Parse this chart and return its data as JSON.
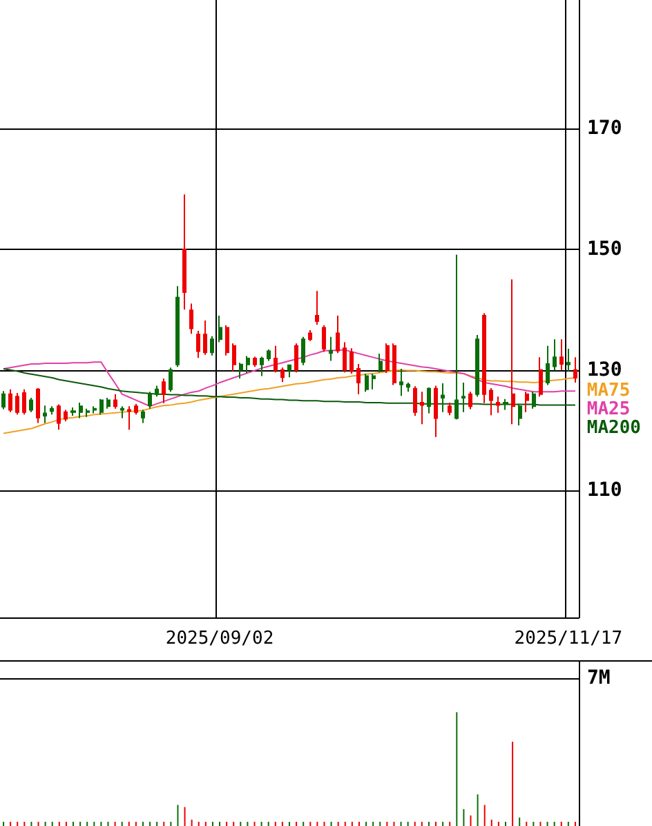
{
  "chart_data": [
    {
      "type": "candlestick",
      "categories": [
        null,
        null,
        null,
        null,
        null,
        null,
        null,
        null,
        null,
        null,
        null,
        null,
        null,
        null,
        null,
        null,
        null,
        null,
        null,
        null,
        null,
        null,
        null,
        null,
        null,
        null,
        null,
        null,
        null,
        null,
        null,
        "2025/09/02",
        null,
        null,
        null,
        null,
        null,
        null,
        null,
        null,
        null,
        null,
        null,
        null,
        null,
        null,
        null,
        null,
        null,
        null,
        null,
        null,
        null,
        null,
        null,
        null,
        null,
        null,
        null,
        null,
        null,
        null,
        null,
        null,
        null,
        null,
        null,
        null,
        null,
        null,
        null,
        null,
        null,
        null,
        null,
        null,
        null,
        null,
        null,
        null,
        null,
        "2025/11/17",
        null
      ],
      "ohlc": [
        [
          123.9,
          126.5,
          123.5,
          126.0
        ],
        [
          126.0,
          126.8,
          123.0,
          123.4
        ],
        [
          125.6,
          126.2,
          122.6,
          123.0
        ],
        [
          126.2,
          126.8,
          122.6,
          123.0
        ],
        [
          123.4,
          125.4,
          123.0,
          125.0
        ],
        [
          126.8,
          127.0,
          121.2,
          122.1
        ],
        [
          122.4,
          124.1,
          121.2,
          122.8
        ],
        [
          123.2,
          124.0,
          122.6,
          123.6
        ],
        [
          124.0,
          124.3,
          120.1,
          121.2
        ],
        [
          123.0,
          123.4,
          121.5,
          121.9
        ],
        [
          123.0,
          123.8,
          122.4,
          123.2
        ],
        [
          123.0,
          124.6,
          122.0,
          124.0
        ],
        [
          123.0,
          123.6,
          122.2,
          123.2
        ],
        [
          123.4,
          124.0,
          122.8,
          123.6
        ],
        [
          123.0,
          125.2,
          122.6,
          125.0
        ],
        [
          124.0,
          125.4,
          123.6,
          125.0
        ],
        [
          125.0,
          126.0,
          123.6,
          124.0
        ],
        [
          123.4,
          124.0,
          122.0,
          123.6
        ],
        [
          123.4,
          124.0,
          120.1,
          123.2
        ],
        [
          124.0,
          124.4,
          122.6,
          123.0
        ],
        [
          122.1,
          123.4,
          121.2,
          123.0
        ],
        [
          124.1,
          126.4,
          123.6,
          126.0
        ],
        [
          126.0,
          127.4,
          125.6,
          126.8
        ],
        [
          128.0,
          128.6,
          124.5,
          126.0
        ],
        [
          126.8,
          130.4,
          126.4,
          130.0
        ],
        [
          130.9,
          143.9,
          130.5,
          142.0
        ],
        [
          150.0,
          159.1,
          140.0,
          142.9
        ],
        [
          139.9,
          141.0,
          136.0,
          136.9
        ],
        [
          135.9,
          136.5,
          132.0,
          133.1
        ],
        [
          135.9,
          138.2,
          132.5,
          132.9
        ],
        [
          132.9,
          135.6,
          132.4,
          135.1
        ],
        [
          135.1,
          139.0,
          134.6,
          137.0
        ],
        [
          137.0,
          137.4,
          132.4,
          132.9
        ],
        [
          134.0,
          134.4,
          129.8,
          130.9
        ],
        [
          130.0,
          131.2,
          128.6,
          130.9
        ],
        [
          130.9,
          132.3,
          129.5,
          131.9
        ],
        [
          131.9,
          132.2,
          130.5,
          130.9
        ],
        [
          130.9,
          132.2,
          129.0,
          131.9
        ],
        [
          131.9,
          133.4,
          131.5,
          133.1
        ],
        [
          131.9,
          134.0,
          129.6,
          130.0
        ],
        [
          130.0,
          130.4,
          128.0,
          128.8
        ],
        [
          130.0,
          130.9,
          128.8,
          130.8
        ],
        [
          134.0,
          134.4,
          129.6,
          130.0
        ],
        [
          131.3,
          135.5,
          130.8,
          135.1
        ],
        [
          136.1,
          136.6,
          134.8,
          135.1
        ],
        [
          139.0,
          143.1,
          137.5,
          138.1
        ],
        [
          137.0,
          137.4,
          133.0,
          133.5
        ],
        [
          132.8,
          135.5,
          131.5,
          133.2
        ],
        [
          136.1,
          139.0,
          132.8,
          133.2
        ],
        [
          133.6,
          134.6,
          129.6,
          130.0
        ],
        [
          132.9,
          133.6,
          129.4,
          129.8
        ],
        [
          130.2,
          131.0,
          126.0,
          127.9
        ],
        [
          126.8,
          129.4,
          126.4,
          129.0
        ],
        [
          128.6,
          129.4,
          126.8,
          129.0
        ],
        [
          130.0,
          132.7,
          129.6,
          131.4
        ],
        [
          134.0,
          134.4,
          129.5,
          130.0
        ],
        [
          134.0,
          134.4,
          127.5,
          127.9
        ],
        [
          127.6,
          130.2,
          125.7,
          128.0
        ],
        [
          127.2,
          127.9,
          126.4,
          127.6
        ],
        [
          126.9,
          127.3,
          122.4,
          123.0
        ],
        [
          124.6,
          126.4,
          121.0,
          124.2
        ],
        [
          124.0,
          127.1,
          122.8,
          126.9
        ],
        [
          126.9,
          127.4,
          118.9,
          122.0
        ],
        [
          125.4,
          127.8,
          123.0,
          125.8
        ],
        [
          124.0,
          124.6,
          122.5,
          123.0
        ],
        [
          122.0,
          149.1,
          121.8,
          125.0
        ],
        [
          125.4,
          127.9,
          123.0,
          125.6
        ],
        [
          126.0,
          126.4,
          123.5,
          124.0
        ],
        [
          126.0,
          135.8,
          125.6,
          135.1
        ],
        [
          139.0,
          139.4,
          124.5,
          126.0
        ],
        [
          126.6,
          127.0,
          122.5,
          125.0
        ],
        [
          124.6,
          125.6,
          122.9,
          124.2
        ],
        [
          124.4,
          125.2,
          123.4,
          124.6
        ],
        [
          126.0,
          145.0,
          121.0,
          124.0
        ],
        [
          122.0,
          124.4,
          120.8,
          124.0
        ],
        [
          126.0,
          126.4,
          123.0,
          125.0
        ],
        [
          124.0,
          126.4,
          123.6,
          126.0
        ],
        [
          130.0,
          132.1,
          125.6,
          126.0
        ],
        [
          127.9,
          134.0,
          127.5,
          131.0
        ],
        [
          130.6,
          135.1,
          129.9,
          132.1
        ],
        [
          132.1,
          135.1,
          130.0,
          131.0
        ],
        [
          130.9,
          133.5,
          129.8,
          131.2
        ],
        [
          130.0,
          132.1,
          127.9,
          128.7
        ]
      ],
      "colors": [
        "#0a6e0a",
        "#ee0000",
        "#ee0000",
        "#ee0000",
        "#0a6e0a",
        "#ee0000",
        "#0a6e0a",
        "#0a6e0a",
        "#ee0000",
        "#ee0000",
        "#0a6e0a",
        "#0a6e0a",
        "#0a6e0a",
        "#0a6e0a",
        "#0a6e0a",
        "#0a6e0a",
        "#ee0000",
        "#0a6e0a",
        "#ee0000",
        "#ee0000",
        "#0a6e0a",
        "#0a6e0a",
        "#0a6e0a",
        "#ee0000",
        "#0a6e0a",
        "#0a6e0a",
        "#ee0000",
        "#ee0000",
        "#ee0000",
        "#ee0000",
        "#0a6e0a",
        "#0a6e0a",
        "#ee0000",
        "#ee0000",
        "#0a6e0a",
        "#0a6e0a",
        "#ee0000",
        "#0a6e0a",
        "#0a6e0a",
        "#ee0000",
        "#ee0000",
        "#0a6e0a",
        "#ee0000",
        "#0a6e0a",
        "#ee0000",
        "#ee0000",
        "#ee0000",
        "#0a6e0a",
        "#ee0000",
        "#ee0000",
        "#ee0000",
        "#ee0000",
        "#0a6e0a",
        "#0a6e0a",
        "#0a6e0a",
        "#ee0000",
        "#ee0000",
        "#0a6e0a",
        "#0a6e0a",
        "#ee0000",
        "#ee0000",
        "#0a6e0a",
        "#ee0000",
        "#0a6e0a",
        "#ee0000",
        "#0a6e0a",
        "#0a6e0a",
        "#ee0000",
        "#0a6e0a",
        "#ee0000",
        "#ee0000",
        "#ee0000",
        "#0a6e0a",
        "#ee0000",
        "#0a6e0a",
        "#ee0000",
        "#0a6e0a",
        "#ee0000",
        "#0a6e0a",
        "#0a6e0a",
        "#ee0000",
        "#0a6e0a",
        "#ee0000"
      ],
      "series": [
        {
          "type": "line",
          "name": "MA75",
          "color": "#f0a020",
          "values": [
            119.5,
            119.7,
            119.9,
            120.1,
            120.3,
            120.7,
            121.1,
            121.4,
            121.8,
            122.0,
            122.1,
            122.3,
            122.4,
            122.6,
            122.7,
            122.8,
            122.9,
            123.0,
            123.1,
            123.2,
            123.3,
            123.6,
            123.9,
            124.1,
            124.2,
            124.4,
            124.5,
            124.7,
            125.0,
            125.2,
            125.4,
            125.6,
            125.8,
            126.0,
            126.2,
            126.4,
            126.6,
            126.8,
            126.9,
            127.1,
            127.3,
            127.5,
            127.7,
            127.8,
            128.0,
            128.2,
            128.4,
            128.5,
            128.7,
            128.8,
            129.0,
            129.1,
            129.3,
            129.4,
            129.6,
            129.7,
            129.9,
            130.0,
            129.9,
            129.9,
            129.8,
            129.7,
            129.7,
            129.6,
            129.5,
            129.5,
            129.4,
            129.0,
            128.7,
            128.3,
            128.2,
            128.2,
            128.1,
            128.1,
            128.0,
            128.0,
            127.9,
            128.0,
            128.2,
            128.3,
            128.4,
            128.6,
            128.7
          ]
        },
        {
          "type": "line",
          "name": "MA25",
          "color": "#e040a8",
          "values": [
            130.2,
            130.4,
            130.6,
            130.8,
            131.0,
            131.0,
            131.1,
            131.1,
            131.1,
            131.1,
            131.2,
            131.2,
            131.2,
            131.3,
            131.3,
            129.5,
            127.8,
            126.0,
            125.5,
            125.0,
            124.5,
            124.0,
            124.4,
            124.8,
            125.2,
            125.6,
            126.0,
            126.3,
            126.5,
            127.0,
            127.4,
            127.9,
            128.3,
            128.7,
            129.1,
            129.5,
            129.9,
            130.3,
            130.6,
            130.9,
            131.2,
            131.5,
            131.8,
            132.1,
            132.5,
            132.8,
            133.2,
            133.2,
            133.3,
            133.3,
            133.0,
            132.7,
            132.4,
            132.1,
            131.8,
            131.5,
            131.3,
            131.1,
            130.9,
            130.7,
            130.5,
            130.4,
            130.2,
            130.0,
            129.8,
            129.6,
            129.4,
            128.9,
            128.4,
            127.9,
            127.7,
            127.5,
            127.3,
            127.0,
            126.8,
            126.6,
            126.4,
            126.4,
            126.4,
            126.4,
            126.5,
            126.5,
            126.5
          ]
        },
        {
          "type": "line",
          "name": "MA200",
          "color": "#0a5a0a",
          "values": [
            130.2,
            130.0,
            129.8,
            129.5,
            129.3,
            129.1,
            128.9,
            128.7,
            128.4,
            128.2,
            128.0,
            127.8,
            127.6,
            127.4,
            127.2,
            126.9,
            126.7,
            126.5,
            126.4,
            126.3,
            126.2,
            126.1,
            126.0,
            126.0,
            125.9,
            125.9,
            125.8,
            125.8,
            125.7,
            125.7,
            125.6,
            125.6,
            125.5,
            125.5,
            125.4,
            125.4,
            125.3,
            125.2,
            125.2,
            125.1,
            125.1,
            125.0,
            125.0,
            124.9,
            124.9,
            124.9,
            124.8,
            124.8,
            124.8,
            124.7,
            124.7,
            124.7,
            124.6,
            124.6,
            124.6,
            124.5,
            124.5,
            124.5,
            124.5,
            124.5,
            124.4,
            124.4,
            124.4,
            124.4,
            124.4,
            124.4,
            124.4,
            124.4,
            124.4,
            124.3,
            124.3,
            124.3,
            124.3,
            124.3,
            124.3,
            124.3,
            124.3,
            124.2,
            124.2,
            124.2,
            124.2,
            124.2,
            124.2
          ]
        }
      ],
      "ylim": [
        89,
        191.3
      ],
      "yticks": [
        110,
        130,
        150,
        170
      ],
      "grid": true,
      "legend": "right",
      "marker": "none"
    },
    {
      "type": "bar",
      "categories": [
        null,
        null,
        null,
        null,
        null,
        null,
        null,
        null,
        null,
        null,
        null,
        null,
        null,
        null,
        null,
        null,
        null,
        null,
        null,
        null,
        null,
        null,
        null,
        null,
        null,
        null,
        null,
        null,
        null,
        null,
        null,
        "2025/09/02",
        null,
        null,
        null,
        null,
        null,
        null,
        null,
        null,
        null,
        null,
        null,
        null,
        null,
        null,
        null,
        null,
        null,
        null,
        null,
        null,
        null,
        null,
        null,
        null,
        null,
        null,
        null,
        null,
        null,
        null,
        null,
        null,
        null,
        null,
        null,
        null,
        null,
        null,
        null,
        null,
        null,
        null,
        null,
        null,
        null,
        null,
        null,
        null,
        null,
        "2025/11/17",
        null
      ],
      "values": [
        0.2,
        0.2,
        0.2,
        0.2,
        0.2,
        0.2,
        0.2,
        0.2,
        0.2,
        0.2,
        0.2,
        0.2,
        0.2,
        0.2,
        0.2,
        0.2,
        0.2,
        0.2,
        0.2,
        0.2,
        0.2,
        0.2,
        0.2,
        0.2,
        0.2,
        1.0,
        0.9,
        0.3,
        0.2,
        0.2,
        0.2,
        0.2,
        0.2,
        0.2,
        0.2,
        0.2,
        0.2,
        0.2,
        0.2,
        0.2,
        0.2,
        0.2,
        0.2,
        0.2,
        0.2,
        0.2,
        0.2,
        0.2,
        0.2,
        0.2,
        0.2,
        0.2,
        0.2,
        0.2,
        0.2,
        0.2,
        0.2,
        0.2,
        0.2,
        0.2,
        0.2,
        0.2,
        0.2,
        0.2,
        0.2,
        5.4,
        0.8,
        0.5,
        1.5,
        1.0,
        0.3,
        0.2,
        0.2,
        4.0,
        0.4,
        0.2,
        0.2,
        0.2,
        0.2,
        0.2,
        0.2,
        0.2,
        0.2
      ],
      "colors": [
        "#0a6e0a",
        "#ee0000",
        "#ee0000",
        "#ee0000",
        "#0a6e0a",
        "#ee0000",
        "#0a6e0a",
        "#0a6e0a",
        "#ee0000",
        "#ee0000",
        "#0a6e0a",
        "#0a6e0a",
        "#0a6e0a",
        "#0a6e0a",
        "#0a6e0a",
        "#0a6e0a",
        "#ee0000",
        "#0a6e0a",
        "#ee0000",
        "#ee0000",
        "#0a6e0a",
        "#0a6e0a",
        "#0a6e0a",
        "#ee0000",
        "#0a6e0a",
        "#0a6e0a",
        "#ee0000",
        "#ee0000",
        "#ee0000",
        "#ee0000",
        "#0a6e0a",
        "#0a6e0a",
        "#ee0000",
        "#ee0000",
        "#0a6e0a",
        "#0a6e0a",
        "#ee0000",
        "#0a6e0a",
        "#0a6e0a",
        "#ee0000",
        "#ee0000",
        "#0a6e0a",
        "#ee0000",
        "#0a6e0a",
        "#ee0000",
        "#ee0000",
        "#ee0000",
        "#0a6e0a",
        "#ee0000",
        "#ee0000",
        "#ee0000",
        "#ee0000",
        "#0a6e0a",
        "#0a6e0a",
        "#0a6e0a",
        "#ee0000",
        "#ee0000",
        "#0a6e0a",
        "#0a6e0a",
        "#ee0000",
        "#ee0000",
        "#0a6e0a",
        "#ee0000",
        "#0a6e0a",
        "#ee0000",
        "#0a6e0a",
        "#0a6e0a",
        "#ee0000",
        "#0a6e0a",
        "#ee0000",
        "#ee0000",
        "#ee0000",
        "#0a6e0a",
        "#ee0000",
        "#0a6e0a",
        "#ee0000",
        "#0a6e0a",
        "#ee0000",
        "#0a6e0a",
        "#0a6e0a",
        "#ee0000",
        "#0a6e0a",
        "#ee0000"
      ],
      "ylim": [
        0,
        7.8
      ],
      "yticks": [
        {
          "value": 0,
          "label": null
        },
        {
          "value": 7,
          "label": "7M"
        }
      ],
      "grid": "y",
      "tick_labels": "y"
    }
  ]
}
